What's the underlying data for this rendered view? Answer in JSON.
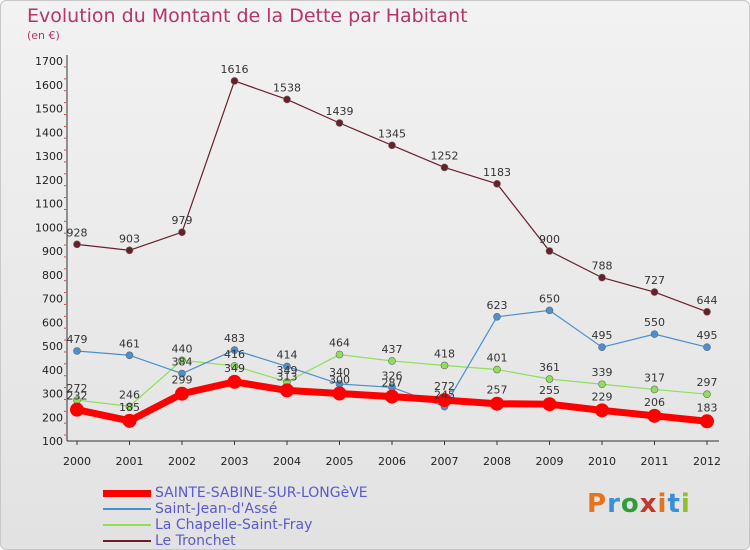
{
  "header": {
    "title": "Evolution du Montant de la Dette par Habitant",
    "unit": "(en €)"
  },
  "logo": {
    "text": "Proxiti",
    "colors": [
      "#e8731c",
      "#3a8fd8",
      "#2e9e3a",
      "#c0392b",
      "#e8731c",
      "#3a8fd8",
      "#8fbf2e"
    ]
  },
  "chart_data": {
    "type": "line",
    "title": "Evolution du Montant de la Dette par Habitant",
    "subtitle": "(en €)",
    "xlabel": "",
    "ylabel": "",
    "x": [
      "2000",
      "2001",
      "2002",
      "2003",
      "2004",
      "2005",
      "2006",
      "2007",
      "2008",
      "2009",
      "2010",
      "2011",
      "2012"
    ],
    "yticks": [
      100,
      200,
      300,
      400,
      500,
      600,
      700,
      800,
      900,
      1000,
      1100,
      1200,
      1300,
      1400,
      1500,
      1600,
      1700
    ],
    "ylim": [
      100,
      1700
    ],
    "grid": false,
    "legend_position": "bottom-left",
    "series": [
      {
        "name": "SAINTE-SABINE-SUR-LONGèVE",
        "color": "#ff0000",
        "values": [
          232,
          185,
          299,
          349,
          313,
          300,
          287,
          272,
          257,
          255,
          229,
          206,
          183
        ]
      },
      {
        "name": "Saint-Jean-d'Assé",
        "color": "#4a8fd0",
        "values": [
          479,
          461,
          384,
          483,
          414,
          340,
          326,
          245,
          623,
          650,
          495,
          550,
          495
        ]
      },
      {
        "name": "La Chapelle-Saint-Fray",
        "color": "#8ee05a",
        "values": [
          272,
          246,
          440,
          416,
          349,
          464,
          437,
          418,
          401,
          361,
          339,
          317,
          297
        ]
      },
      {
        "name": "Le Tronchet",
        "color": "#6b1e2a",
        "values": [
          928,
          903,
          979,
          1616,
          1538,
          1439,
          1345,
          1252,
          1183,
          900,
          788,
          727,
          644
        ]
      }
    ]
  }
}
